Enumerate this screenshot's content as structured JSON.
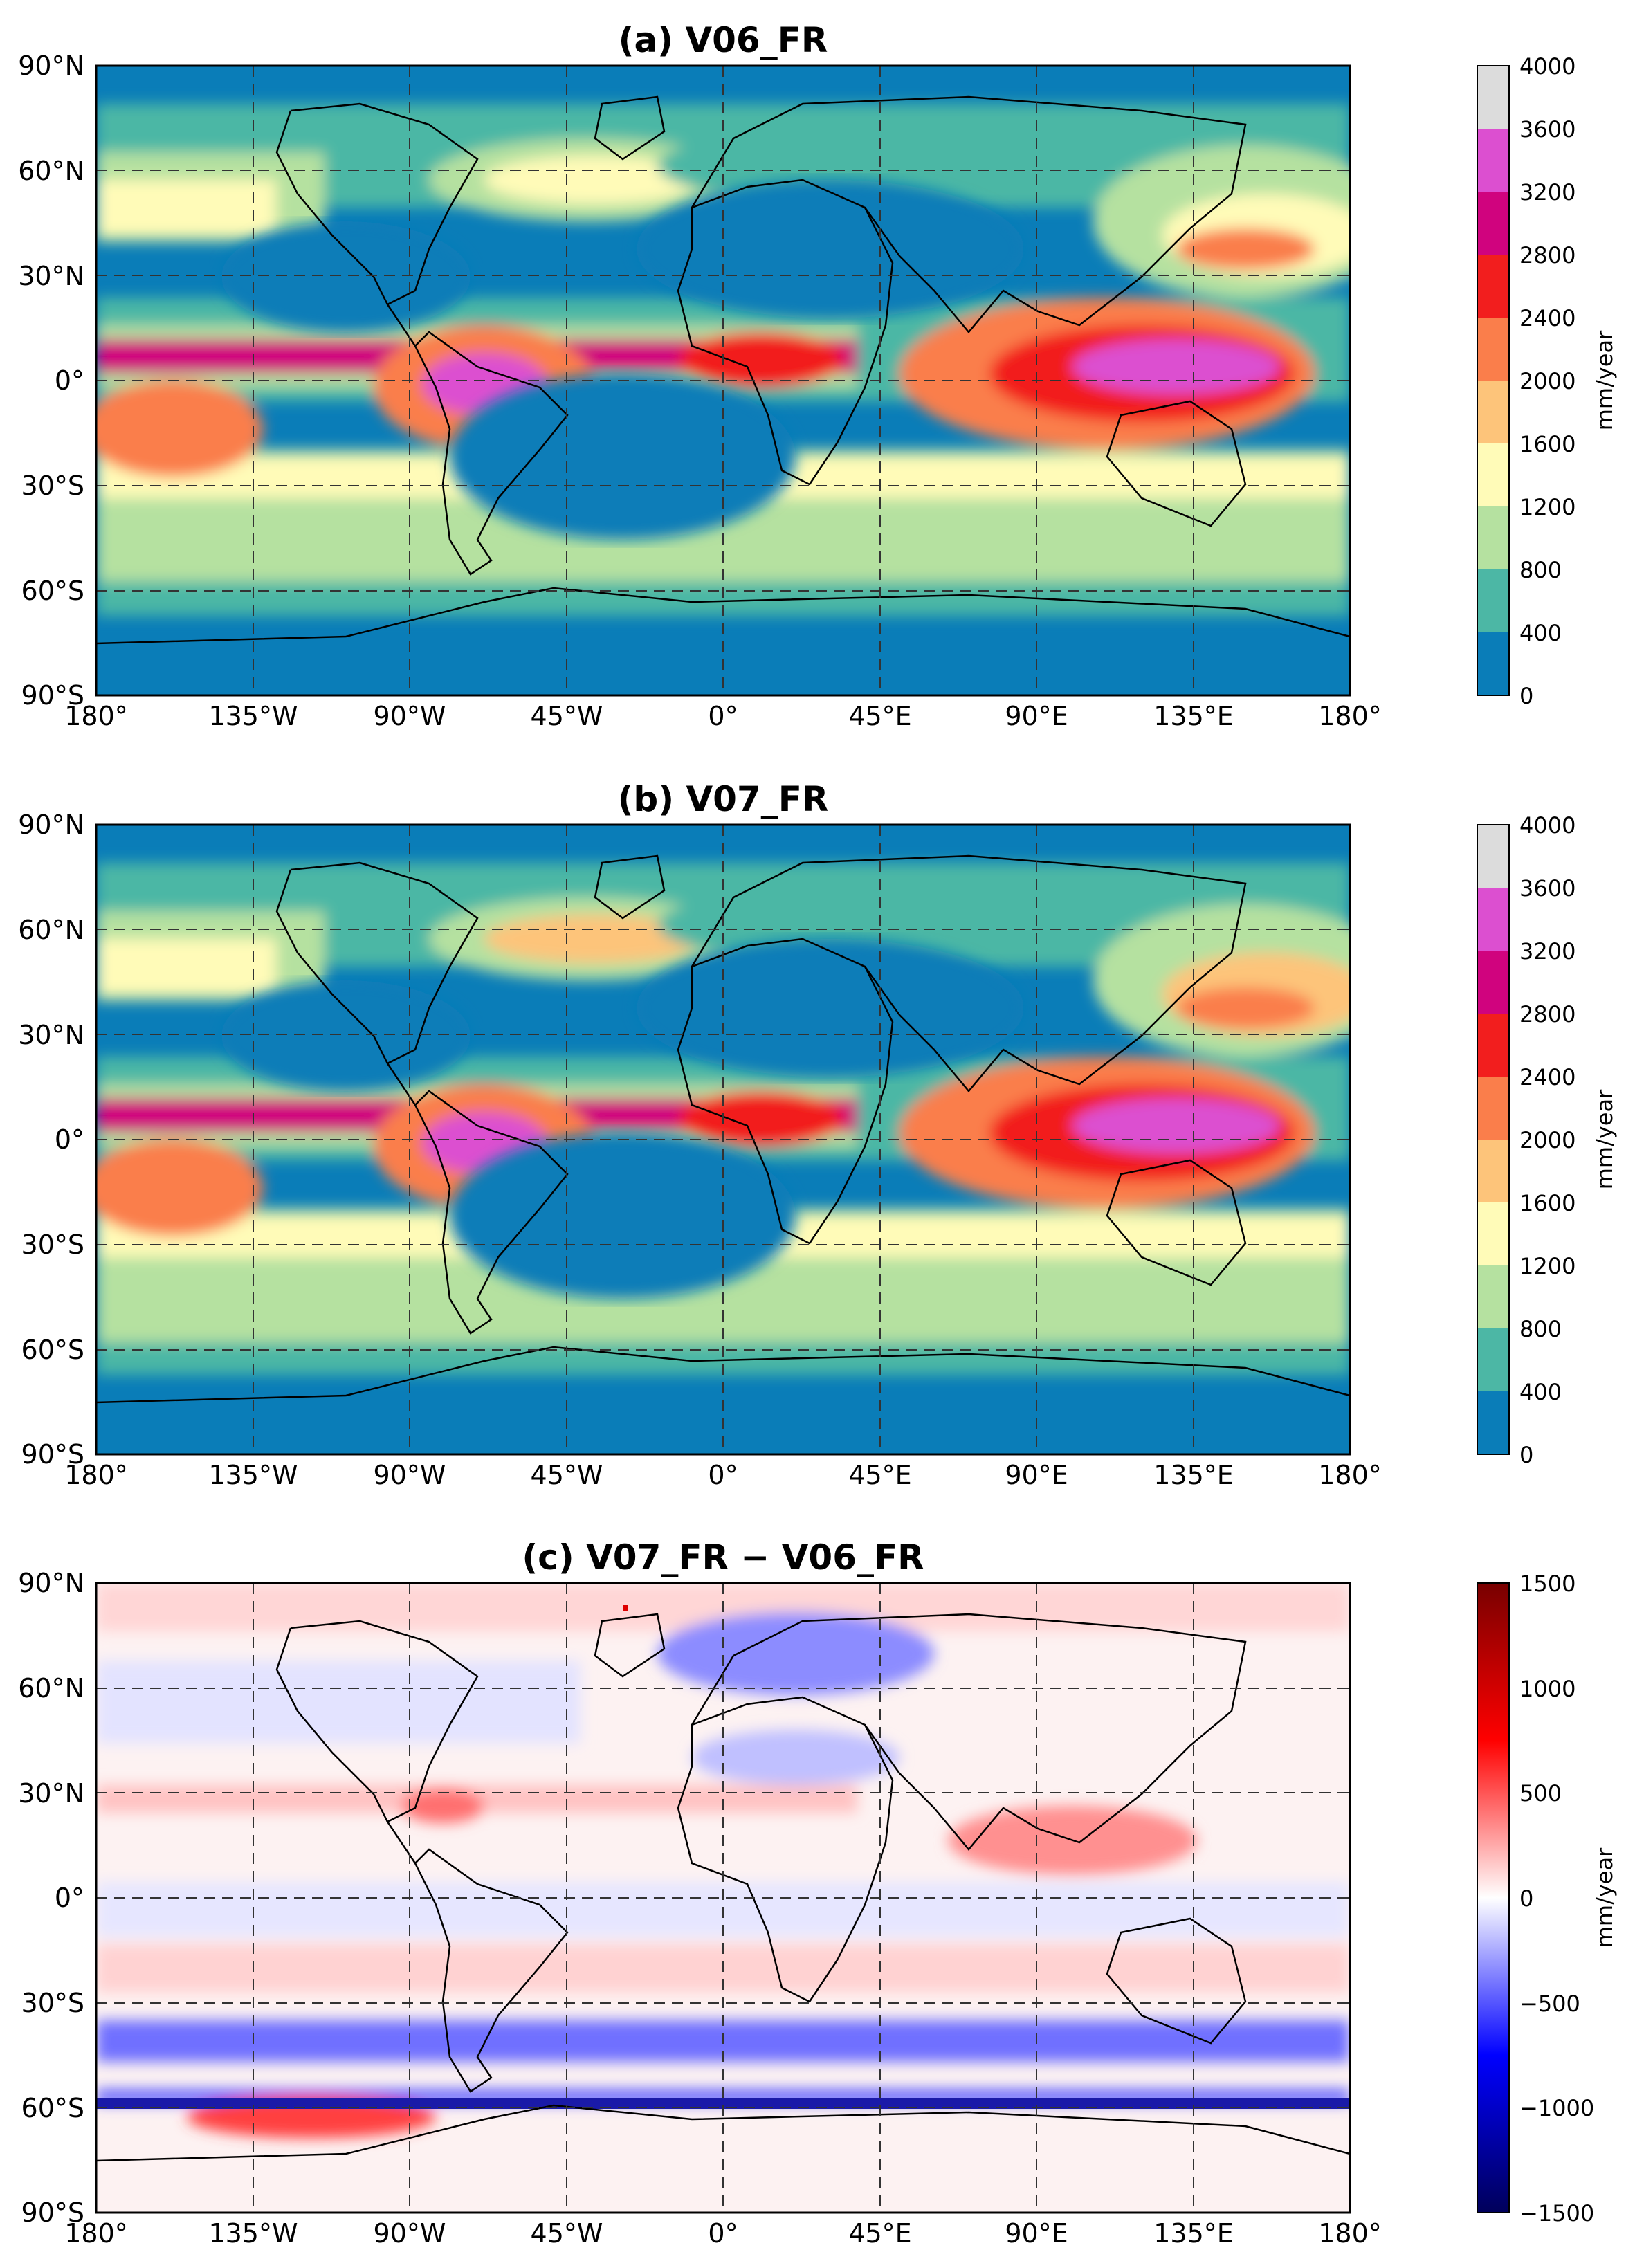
{
  "colors": {
    "levels": [
      "#0a7db8",
      "#4cb7a5",
      "#b5e1a0",
      "#fffbb8",
      "#fdc47a",
      "#fa7e4b",
      "#f21e1e",
      "#d0037e",
      "#dc4fd0",
      "#dcdcdc"
    ],
    "diverging": [
      "#00005a",
      "#0000ff",
      "#ffffff",
      "#ff0000",
      "#780000"
    ],
    "ocean_dry": "#0a7db8",
    "coast": "#000000",
    "grid": "#333333"
  },
  "lat_ticks": [
    "90°N",
    "60°N",
    "30°N",
    "0°",
    "30°S",
    "60°S",
    "90°S"
  ],
  "lon_ticks": [
    "180°",
    "135°W",
    "90°W",
    "45°W",
    "0°",
    "45°E",
    "90°E",
    "135°E",
    "180°"
  ],
  "panels": [
    {
      "title": "(a) V06_FR",
      "colorbar": {
        "ticks": [
          "4000",
          "3600",
          "3200",
          "2800",
          "2400",
          "2000",
          "1600",
          "1200",
          "800",
          "400",
          "0"
        ],
        "label": "mm/year"
      }
    },
    {
      "title": "(b) V07_FR",
      "colorbar": {
        "ticks": [
          "4000",
          "3600",
          "3200",
          "2800",
          "2400",
          "2000",
          "1600",
          "1200",
          "800",
          "400",
          "0"
        ],
        "label": "mm/year"
      }
    },
    {
      "title": "(c) V07_FR − V06_FR",
      "colorbar": {
        "ticks": [
          "1500",
          "1000",
          "500",
          "0",
          "−500",
          "−1000",
          "−1500"
        ],
        "label": "mm/year"
      }
    }
  ]
}
